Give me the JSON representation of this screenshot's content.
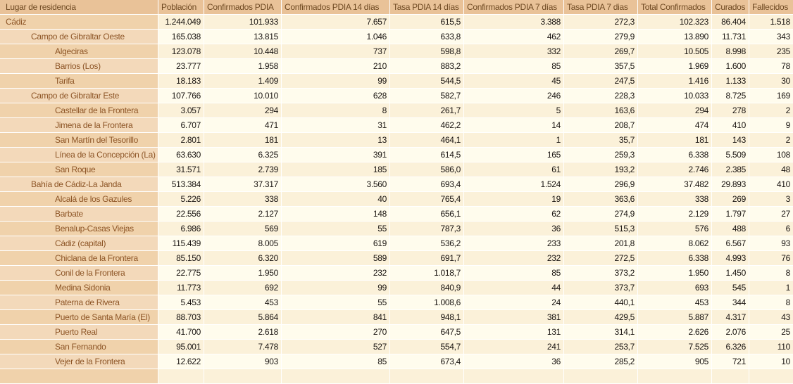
{
  "chart_data": {
    "type": "table",
    "columns": [
      "Lugar de residencia",
      "Población",
      "Confirmados PDIA",
      "Confirmados PDIA 14 días",
      "Tasa PDIA 14 días",
      "Confirmados PDIA 7 días",
      "Tasa PDIA 7 dias",
      "Total Confirmados",
      "Curados",
      "Fallecidos"
    ],
    "rows": [
      {
        "name": "Cádiz",
        "level": 0,
        "values": [
          "1.244.049",
          "101.933",
          "7.657",
          "615,5",
          "3.388",
          "272,3",
          "102.323",
          "86.404",
          "1.518"
        ]
      },
      {
        "name": "Campo de Gibraltar Oeste",
        "level": 1,
        "values": [
          "165.038",
          "13.815",
          "1.046",
          "633,8",
          "462",
          "279,9",
          "13.890",
          "11.731",
          "343"
        ]
      },
      {
        "name": "Algeciras",
        "level": 2,
        "values": [
          "123.078",
          "10.448",
          "737",
          "598,8",
          "332",
          "269,7",
          "10.505",
          "8.998",
          "235"
        ]
      },
      {
        "name": "Barrios (Los)",
        "level": 2,
        "values": [
          "23.777",
          "1.958",
          "210",
          "883,2",
          "85",
          "357,5",
          "1.969",
          "1.600",
          "78"
        ]
      },
      {
        "name": "Tarifa",
        "level": 2,
        "values": [
          "18.183",
          "1.409",
          "99",
          "544,5",
          "45",
          "247,5",
          "1.416",
          "1.133",
          "30"
        ]
      },
      {
        "name": "Campo de Gibraltar Este",
        "level": 1,
        "values": [
          "107.766",
          "10.010",
          "628",
          "582,7",
          "246",
          "228,3",
          "10.033",
          "8.725",
          "169"
        ]
      },
      {
        "name": "Castellar de la Frontera",
        "level": 2,
        "values": [
          "3.057",
          "294",
          "8",
          "261,7",
          "5",
          "163,6",
          "294",
          "278",
          "2"
        ]
      },
      {
        "name": "Jimena de la Frontera",
        "level": 2,
        "values": [
          "6.707",
          "471",
          "31",
          "462,2",
          "14",
          "208,7",
          "474",
          "410",
          "9"
        ]
      },
      {
        "name": "San Martín del Tesorillo",
        "level": 2,
        "values": [
          "2.801",
          "181",
          "13",
          "464,1",
          "1",
          "35,7",
          "181",
          "143",
          "2"
        ]
      },
      {
        "name": "Línea de la Concepción (La)",
        "level": 2,
        "values": [
          "63.630",
          "6.325",
          "391",
          "614,5",
          "165",
          "259,3",
          "6.338",
          "5.509",
          "108"
        ]
      },
      {
        "name": "San Roque",
        "level": 2,
        "values": [
          "31.571",
          "2.739",
          "185",
          "586,0",
          "61",
          "193,2",
          "2.746",
          "2.385",
          "48"
        ]
      },
      {
        "name": "Bahía de Cádiz-La Janda",
        "level": 1,
        "values": [
          "513.384",
          "37.317",
          "3.560",
          "693,4",
          "1.524",
          "296,9",
          "37.482",
          "29.893",
          "410"
        ]
      },
      {
        "name": "Alcalá de los Gazules",
        "level": 2,
        "values": [
          "5.226",
          "338",
          "40",
          "765,4",
          "19",
          "363,6",
          "338",
          "269",
          "3"
        ]
      },
      {
        "name": "Barbate",
        "level": 2,
        "values": [
          "22.556",
          "2.127",
          "148",
          "656,1",
          "62",
          "274,9",
          "2.129",
          "1.797",
          "27"
        ]
      },
      {
        "name": "Benalup-Casas Viejas",
        "level": 2,
        "values": [
          "6.986",
          "569",
          "55",
          "787,3",
          "36",
          "515,3",
          "576",
          "488",
          "6"
        ]
      },
      {
        "name": "Cádiz (capital)",
        "level": 2,
        "values": [
          "115.439",
          "8.005",
          "619",
          "536,2",
          "233",
          "201,8",
          "8.062",
          "6.567",
          "93"
        ]
      },
      {
        "name": "Chiclana de la Frontera",
        "level": 2,
        "values": [
          "85.150",
          "6.320",
          "589",
          "691,7",
          "232",
          "272,5",
          "6.338",
          "4.993",
          "76"
        ]
      },
      {
        "name": "Conil de la Frontera",
        "level": 2,
        "values": [
          "22.775",
          "1.950",
          "232",
          "1.018,7",
          "85",
          "373,2",
          "1.950",
          "1.450",
          "8"
        ]
      },
      {
        "name": "Medina Sidonia",
        "level": 2,
        "values": [
          "11.773",
          "692",
          "99",
          "840,9",
          "44",
          "373,7",
          "693",
          "545",
          "1"
        ]
      },
      {
        "name": "Paterna de Rivera",
        "level": 2,
        "values": [
          "5.453",
          "453",
          "55",
          "1.008,6",
          "24",
          "440,1",
          "453",
          "344",
          "8"
        ]
      },
      {
        "name": "Puerto de Santa María (El)",
        "level": 2,
        "values": [
          "88.703",
          "5.864",
          "841",
          "948,1",
          "381",
          "429,5",
          "5.887",
          "4.317",
          "43"
        ]
      },
      {
        "name": "Puerto Real",
        "level": 2,
        "values": [
          "41.700",
          "2.618",
          "270",
          "647,5",
          "131",
          "314,1",
          "2.626",
          "2.076",
          "25"
        ]
      },
      {
        "name": "San Fernando",
        "level": 2,
        "values": [
          "95.001",
          "7.478",
          "527",
          "554,7",
          "241",
          "253,7",
          "7.525",
          "6.326",
          "110"
        ]
      },
      {
        "name": "Vejer de la Frontera",
        "level": 2,
        "values": [
          "12.622",
          "903",
          "85",
          "673,4",
          "36",
          "285,2",
          "905",
          "721",
          "10"
        ]
      }
    ]
  },
  "colors": {
    "header_bg": "#e9c298",
    "header_text": "#6f4a23",
    "name_text": "#8d5526",
    "value_text": "#191411",
    "name_bg_odd": "#f0d2ab",
    "name_bg_even": "#f3d9ba",
    "value_bg_odd": "#fbf1d9",
    "value_bg_even": "#fffced"
  }
}
